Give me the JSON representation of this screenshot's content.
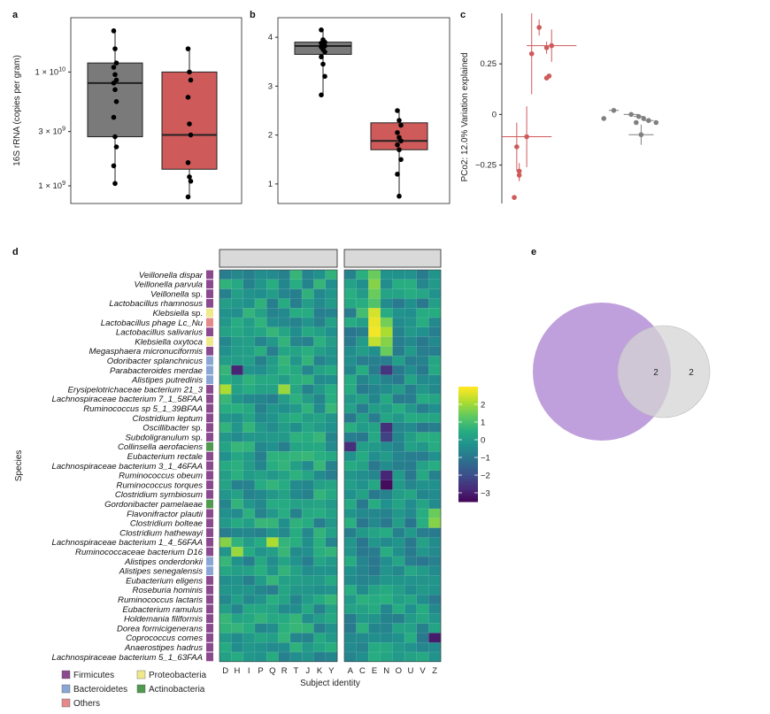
{
  "panels": {
    "a": "a",
    "b": "b",
    "c": "c",
    "d": "d",
    "e": "e"
  },
  "chart_data": [
    {
      "id": "a",
      "type": "box",
      "ylabel": "16S rRNA (copies per gram)",
      "yscale": "log",
      "ylim": [
        700000000,
        30000000000
      ],
      "yticks": [
        {
          "value": 1000000000,
          "label": "1 × 10^9"
        },
        {
          "value": 3000000000,
          "label": "3 × 10^9"
        },
        {
          "value": 10000000000,
          "label": "1 × 10^10"
        }
      ],
      "groups": [
        {
          "name": "group-1",
          "color": "#7a7a7a",
          "q1": 2700000000,
          "median": 8000000000,
          "q3": 12000000000,
          "whisker_low": 1000000000,
          "whisker_high": 23000000000,
          "points": [
            23000000000,
            16000000000,
            12000000000,
            11000000000,
            9500000000,
            8500000000,
            8000000000,
            7000000000,
            5500000000,
            4000000000,
            2700000000,
            2200000000,
            1500000000,
            1050000000
          ]
        },
        {
          "name": "group-2",
          "color": "#cf5a5a",
          "q1": 1400000000,
          "median": 2800000000,
          "q3": 10000000000,
          "whisker_low": 800000000,
          "whisker_high": 16000000000,
          "points": [
            16000000000,
            10000000000,
            8500000000,
            6000000000,
            3500000000,
            2800000000,
            1600000000,
            1200000000,
            1100000000,
            800000000
          ]
        }
      ]
    },
    {
      "id": "b",
      "type": "box",
      "ylim": [
        0.6,
        4.4
      ],
      "yticks": [
        {
          "value": 1,
          "label": "1"
        },
        {
          "value": 2,
          "label": "2"
        },
        {
          "value": 3,
          "label": "3"
        },
        {
          "value": 4,
          "label": "4"
        }
      ],
      "groups": [
        {
          "name": "group-1",
          "color": "#7a7a7a",
          "q1": 3.65,
          "median": 3.82,
          "q3": 3.9,
          "whisker_low": 2.8,
          "whisker_high": 4.15,
          "points": [
            4.15,
            3.95,
            3.9,
            3.88,
            3.85,
            3.82,
            3.8,
            3.75,
            3.7,
            3.6,
            3.45,
            3.2,
            2.82
          ]
        },
        {
          "name": "group-2",
          "color": "#cf5a5a",
          "q1": 1.7,
          "median": 1.88,
          "q3": 2.25,
          "whisker_low": 0.75,
          "whisker_high": 2.5,
          "points": [
            2.5,
            2.3,
            2.2,
            2.05,
            1.95,
            1.88,
            1.8,
            1.7,
            1.5,
            1.2,
            0.75
          ]
        }
      ]
    },
    {
      "id": "c",
      "type": "scatter",
      "ylabel": "PCo2: 12.0% Variation explained",
      "xlim": [
        -0.32,
        0.42
      ],
      "ylim": [
        -0.44,
        0.5
      ],
      "yticks": [
        {
          "value": 0.25,
          "label": "0.25"
        },
        {
          "value": 0,
          "label": "0"
        },
        {
          "value": -0.25,
          "label": "−0.25"
        }
      ],
      "series": [
        {
          "name": "red",
          "color": "#cf5a5a",
          "points": [
            {
              "x": -0.17,
              "y": 0.43,
              "ex": 0.0,
              "ey": 0.04
            },
            {
              "x": -0.2,
              "y": 0.3,
              "ex": 0.01,
              "ey": 0.2
            },
            {
              "x": -0.14,
              "y": 0.33,
              "ex": 0.0,
              "ey": 0.03
            },
            {
              "x": -0.12,
              "y": 0.34,
              "ex": 0.1,
              "ey": 0.08
            },
            {
              "x": -0.13,
              "y": 0.19,
              "ex": 0.0,
              "ey": 0.01
            },
            {
              "x": -0.14,
              "y": 0.18,
              "ex": 0.0,
              "ey": 0.01
            },
            {
              "x": -0.22,
              "y": -0.11,
              "ex": 0.1,
              "ey": 0.15
            },
            {
              "x": -0.26,
              "y": -0.16,
              "ex": 0.01,
              "ey": 0.12
            },
            {
              "x": -0.25,
              "y": -0.28,
              "ex": 0.0,
              "ey": 0.04
            },
            {
              "x": -0.25,
              "y": -0.3,
              "ex": 0.0,
              "ey": 0.03
            },
            {
              "x": -0.27,
              "y": -0.41,
              "ex": 0.0,
              "ey": 0.01
            }
          ]
        },
        {
          "name": "gray",
          "color": "#808080",
          "points": [
            {
              "x": 0.13,
              "y": 0.02,
              "ex": 0.02,
              "ey": 0.0
            },
            {
              "x": 0.09,
              "y": -0.02,
              "ex": 0.0,
              "ey": 0.0
            },
            {
              "x": 0.2,
              "y": 0.0,
              "ex": 0.03,
              "ey": 0.0
            },
            {
              "x": 0.23,
              "y": -0.01,
              "ex": 0.02,
              "ey": 0.0
            },
            {
              "x": 0.25,
              "y": -0.02,
              "ex": 0.0,
              "ey": 0.0
            },
            {
              "x": 0.27,
              "y": -0.03,
              "ex": 0.02,
              "ey": 0.0
            },
            {
              "x": 0.3,
              "y": -0.04,
              "ex": 0.0,
              "ey": 0.0
            },
            {
              "x": 0.22,
              "y": -0.04,
              "ex": 0.0,
              "ey": 0.0
            },
            {
              "x": 0.24,
              "y": -0.1,
              "ex": 0.05,
              "ey": 0.05
            }
          ]
        }
      ]
    },
    {
      "id": "d",
      "type": "heatmap",
      "ylabel": "Species",
      "xlabel": "Subject identity",
      "columns_left": [
        "D",
        "H",
        "I",
        "P",
        "Q",
        "R",
        "T",
        "J",
        "K",
        "Y"
      ],
      "columns_right": [
        "A",
        "C",
        "E",
        "N",
        "O",
        "U",
        "V",
        "Z"
      ],
      "species": [
        {
          "name": "Veillonella dispar",
          "phylum": "Firmicutes",
          "plain": ""
        },
        {
          "name": "Veillonella parvula",
          "phylum": "Firmicutes",
          "plain": ""
        },
        {
          "name": "Veillonella",
          "phylum": "Firmicutes",
          "plain": " sp."
        },
        {
          "name": "Lactobacillus rhamnosus",
          "phylum": "Firmicutes",
          "plain": ""
        },
        {
          "name": "Klebsiella",
          "phylum": "Proteobacteria",
          "plain": " sp."
        },
        {
          "name": "Lactobacillus phage Lc_Nu",
          "phylum": "Others",
          "plain": ""
        },
        {
          "name": "Lactobacillus salivarius",
          "phylum": "Firmicutes",
          "plain": ""
        },
        {
          "name": "Klebsiella oxytoca",
          "phylum": "Proteobacteria",
          "plain": ""
        },
        {
          "name": "Megasphaera micronuciformis",
          "phylum": "Firmicutes",
          "plain": ""
        },
        {
          "name": "Odoribacter splanchnicus",
          "phylum": "Bacteroidetes",
          "plain": ""
        },
        {
          "name": "Parabacteroides merdae",
          "phylum": "Bacteroidetes",
          "plain": ""
        },
        {
          "name": "Alistipes putredinis",
          "phylum": "Bacteroidetes",
          "plain": ""
        },
        {
          "name": "Erysipelotrichaceae bacterium 21_3",
          "phylum": "Firmicutes",
          "plain": ""
        },
        {
          "name": "Lachnospiraceae bacterium 7_1_58FAA",
          "phylum": "Firmicutes",
          "plain": ""
        },
        {
          "name": "Ruminococcus sp 5_1_39BFAA",
          "phylum": "Firmicutes",
          "plain": ""
        },
        {
          "name": "Clostridium leptum",
          "phylum": "Firmicutes",
          "plain": ""
        },
        {
          "name": "Oscillibacter",
          "phylum": "Firmicutes",
          "plain": " sp."
        },
        {
          "name": "Subdoligranulum",
          "phylum": "Firmicutes",
          "plain": " sp."
        },
        {
          "name": "Collinsella aerofaciens",
          "phylum": "Actinobacteria",
          "plain": ""
        },
        {
          "name": "Eubacterium rectale",
          "phylum": "Firmicutes",
          "plain": ""
        },
        {
          "name": "Lachnospiraceae bacterium 3_1_46FAA",
          "phylum": "Firmicutes",
          "plain": ""
        },
        {
          "name": "Ruminococcus obeum",
          "phylum": "Firmicutes",
          "plain": ""
        },
        {
          "name": "Ruminococcus torques",
          "phylum": "Firmicutes",
          "plain": ""
        },
        {
          "name": "Clostridium symbiosum",
          "phylum": "Firmicutes",
          "plain": ""
        },
        {
          "name": "Gordonibacter pamelaeae",
          "phylum": "Actinobacteria",
          "plain": ""
        },
        {
          "name": "Flavonifractor plautii",
          "phylum": "Firmicutes",
          "plain": ""
        },
        {
          "name": "Clostridium bolteae",
          "phylum": "Firmicutes",
          "plain": ""
        },
        {
          "name": "Clostridium hathewayi",
          "phylum": "Firmicutes",
          "plain": ""
        },
        {
          "name": "Lachnospiraceae bacterium 1_4_56FAA",
          "phylum": "Firmicutes",
          "plain": ""
        },
        {
          "name": "Ruminococcaceae bacterium D16",
          "phylum": "Firmicutes",
          "plain": ""
        },
        {
          "name": "Alistipes onderdonkii",
          "phylum": "Bacteroidetes",
          "plain": ""
        },
        {
          "name": "Alistipes senegalensis",
          "phylum": "Bacteroidetes",
          "plain": ""
        },
        {
          "name": "Eubacterium eligens",
          "phylum": "Firmicutes",
          "plain": ""
        },
        {
          "name": "Roseburia hominis",
          "phylum": "Firmicutes",
          "plain": ""
        },
        {
          "name": "Ruminococcus lactaris",
          "phylum": "Firmicutes",
          "plain": ""
        },
        {
          "name": "Eubacterium ramulus",
          "phylum": "Firmicutes",
          "plain": ""
        },
        {
          "name": "Holdemania filiformis",
          "phylum": "Firmicutes",
          "plain": ""
        },
        {
          "name": "Dorea formicigenerans",
          "phylum": "Firmicutes",
          "plain": ""
        },
        {
          "name": "Coprococcus comes",
          "phylum": "Firmicutes",
          "plain": ""
        },
        {
          "name": "Anaerostipes hadrus",
          "phylum": "Firmicutes",
          "plain": ""
        },
        {
          "name": "Lachnospiraceae bacterium 5_1_63FAA",
          "phylum": "Firmicutes",
          "plain": ""
        }
      ],
      "hot_cells": [
        {
          "row": 0,
          "col": "E",
          "value": 1.5
        },
        {
          "row": 1,
          "col": "E",
          "value": 1.8
        },
        {
          "row": 2,
          "col": "E",
          "value": 1.5
        },
        {
          "row": 3,
          "col": "E",
          "value": 1.2
        },
        {
          "row": 4,
          "col": "E",
          "value": 2.6
        },
        {
          "row": 4,
          "col": "C",
          "value": 1.0
        },
        {
          "row": 5,
          "col": "E",
          "value": 2.8
        },
        {
          "row": 5,
          "col": "N",
          "value": 1.6
        },
        {
          "row": 6,
          "col": "E",
          "value": 2.9
        },
        {
          "row": 6,
          "col": "N",
          "value": 2.2
        },
        {
          "row": 7,
          "col": "E",
          "value": 2.4
        },
        {
          "row": 7,
          "col": "N",
          "value": 1.8
        },
        {
          "row": 8,
          "col": "N",
          "value": 1.5
        },
        {
          "row": 10,
          "col": "H",
          "value": -2.8
        },
        {
          "row": 10,
          "col": "N",
          "value": -2.5
        },
        {
          "row": 12,
          "col": "D",
          "value": 2.2
        },
        {
          "row": 12,
          "col": "R",
          "value": 2.0
        },
        {
          "row": 16,
          "col": "N",
          "value": -2.6
        },
        {
          "row": 17,
          "col": "N",
          "value": -2.2
        },
        {
          "row": 18,
          "col": "A",
          "value": -2.6
        },
        {
          "row": 21,
          "col": "N",
          "value": -2.8
        },
        {
          "row": 22,
          "col": "N",
          "value": -3.3
        },
        {
          "row": 25,
          "col": "Z",
          "value": 1.5
        },
        {
          "row": 26,
          "col": "Z",
          "value": 1.8
        },
        {
          "row": 28,
          "col": "D",
          "value": 1.8
        },
        {
          "row": 28,
          "col": "Q",
          "value": 2.2
        },
        {
          "row": 29,
          "col": "H",
          "value": 2.0
        },
        {
          "row": 38,
          "col": "Z",
          "value": -3.0
        }
      ],
      "colorbar": {
        "range": [
          -3.5,
          3
        ],
        "ticks": [
          {
            "value": 2,
            "label": "2"
          },
          {
            "value": 1,
            "label": "1"
          },
          {
            "value": 0,
            "label": "0"
          },
          {
            "value": -1,
            "label": "−1"
          },
          {
            "value": -2,
            "label": "−2"
          },
          {
            "value": -3,
            "label": "−3"
          }
        ]
      }
    },
    {
      "id": "e",
      "type": "venn",
      "sets": [
        {
          "name": "left",
          "only": null,
          "color": "#b48fd6"
        },
        {
          "name": "right",
          "only": 2,
          "color": "#d4d4d4"
        }
      ],
      "overlap": 2,
      "labels": [
        "2",
        "2"
      ]
    }
  ],
  "legend": {
    "items": [
      {
        "label": "Firmicutes",
        "color": "#8b4a8f"
      },
      {
        "label": "Proteobacteria",
        "color": "#f0e98a"
      },
      {
        "label": "Bacteroidetes",
        "color": "#8aa6d4"
      },
      {
        "label": "Actinobacteria",
        "color": "#4f9a4f"
      },
      {
        "label": "Others",
        "color": "#e48a8a"
      }
    ]
  },
  "phylum_colors": {
    "Firmicutes": "#8b4a8f",
    "Proteobacteria": "#f0e98a",
    "Bacteroidetes": "#8aa6d4",
    "Actinobacteria": "#4f9a4f",
    "Others": "#e48a8a"
  }
}
